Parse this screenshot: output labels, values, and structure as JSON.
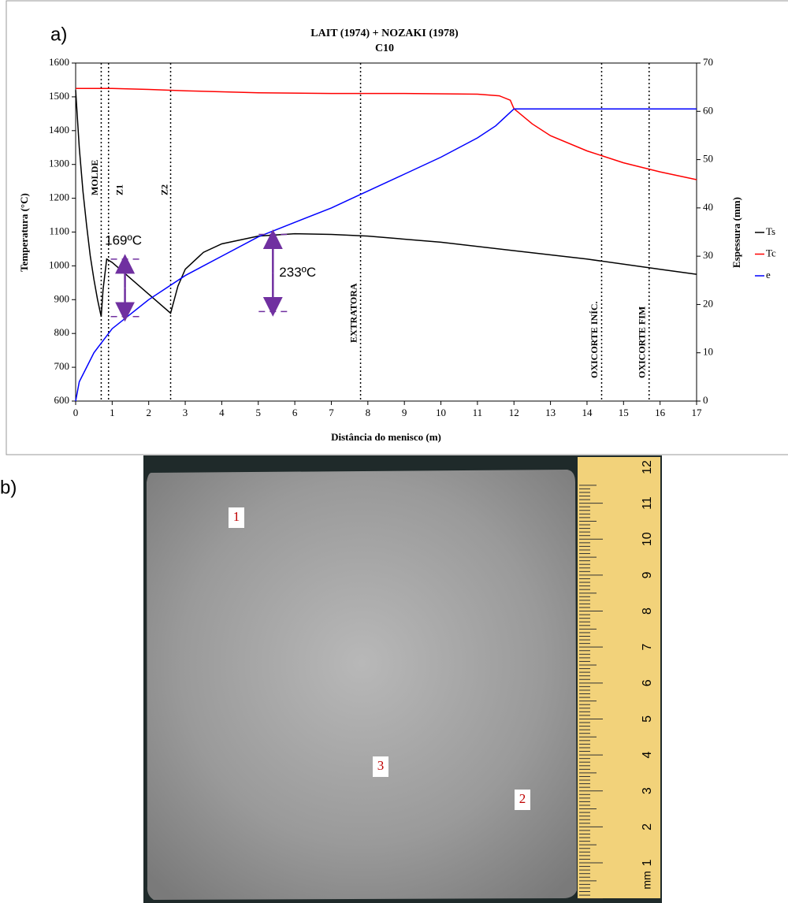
{
  "chart_data": {
    "type": "line",
    "panel_label": "a)",
    "title": "LAIT (1974) + NOZAKI (1978)",
    "subtitle": "C10",
    "x_label": "Distância do menisco (m)",
    "y_label": "Temperatura (°C)",
    "y2_label": "Espessura (mm)",
    "xlim": [
      0,
      17
    ],
    "xticks": [
      0,
      1,
      2,
      3,
      4,
      5,
      6,
      7,
      8,
      9,
      10,
      11,
      12,
      13,
      14,
      15,
      16,
      17
    ],
    "ylim": [
      600,
      1600
    ],
    "yticks": [
      600,
      700,
      800,
      900,
      1000,
      1100,
      1200,
      1300,
      1400,
      1500,
      1600
    ],
    "y2lim": [
      0,
      70
    ],
    "y2ticks": [
      0,
      10,
      20,
      30,
      40,
      50,
      60,
      70
    ],
    "legend": "right",
    "series": [
      {
        "name": "Ts",
        "color": "#000000",
        "x": [
          0,
          0.1,
          0.2,
          0.3,
          0.4,
          0.5,
          0.6,
          0.7,
          0.75,
          0.85,
          1.0,
          2.6,
          2.8,
          3.0,
          3.5,
          4,
          5,
          6,
          7,
          8,
          10,
          12,
          14,
          16,
          17
        ],
        "values": [
          1520,
          1350,
          1220,
          1120,
          1030,
          960,
          900,
          850,
          930,
          1020,
          1010,
          860,
          940,
          990,
          1040,
          1065,
          1088,
          1095,
          1093,
          1088,
          1070,
          1045,
          1020,
          990,
          975
        ]
      },
      {
        "name": "Tc",
        "color": "#ff0000",
        "x": [
          0,
          1,
          2,
          3,
          5,
          7,
          9,
          11,
          11.6,
          11.9,
          12,
          12.5,
          13,
          14,
          15,
          16,
          17
        ],
        "values": [
          1525,
          1525,
          1522,
          1518,
          1512,
          1510,
          1510,
          1508,
          1503,
          1490,
          1465,
          1420,
          1385,
          1340,
          1305,
          1278,
          1255
        ]
      },
      {
        "name": "e",
        "color": "#0000ff",
        "axis": "y2",
        "x": [
          0,
          0.1,
          0.3,
          0.5,
          0.8,
          1,
          2,
          3,
          4,
          5,
          6,
          7,
          8,
          9,
          10,
          11,
          11.5,
          12,
          17
        ],
        "values": [
          0,
          4,
          7,
          10,
          13,
          15,
          21,
          26,
          30,
          34,
          37,
          40,
          43.5,
          47,
          50.5,
          54.5,
          57,
          60.5,
          60.5
        ]
      }
    ],
    "vlines": [
      {
        "x": 0.7,
        "label": "MOLDE"
      },
      {
        "x": 0.9,
        "label": "Z1"
      },
      {
        "x": 2.6,
        "label": "Z2"
      },
      {
        "x": 7.8,
        "label": "EXTRATORA"
      },
      {
        "x": 14.4,
        "label": "OXICORTE INÍC."
      },
      {
        "x": 15.7,
        "label": "OXICORTE FIM"
      }
    ],
    "annotations": [
      {
        "text": "169ºC",
        "x": 1.35,
        "y_from": 850,
        "y_to": 1020
      },
      {
        "text": "233ºC",
        "x": 5.4,
        "y_from": 865,
        "y_to": 1093
      }
    ]
  },
  "photo": {
    "label": "b)",
    "markers": [
      "1",
      "2",
      "3"
    ],
    "ruler": {
      "unit": "mm",
      "ticks": [
        1,
        2,
        3,
        4,
        5,
        6,
        7,
        8,
        9,
        10,
        11,
        12
      ]
    }
  }
}
